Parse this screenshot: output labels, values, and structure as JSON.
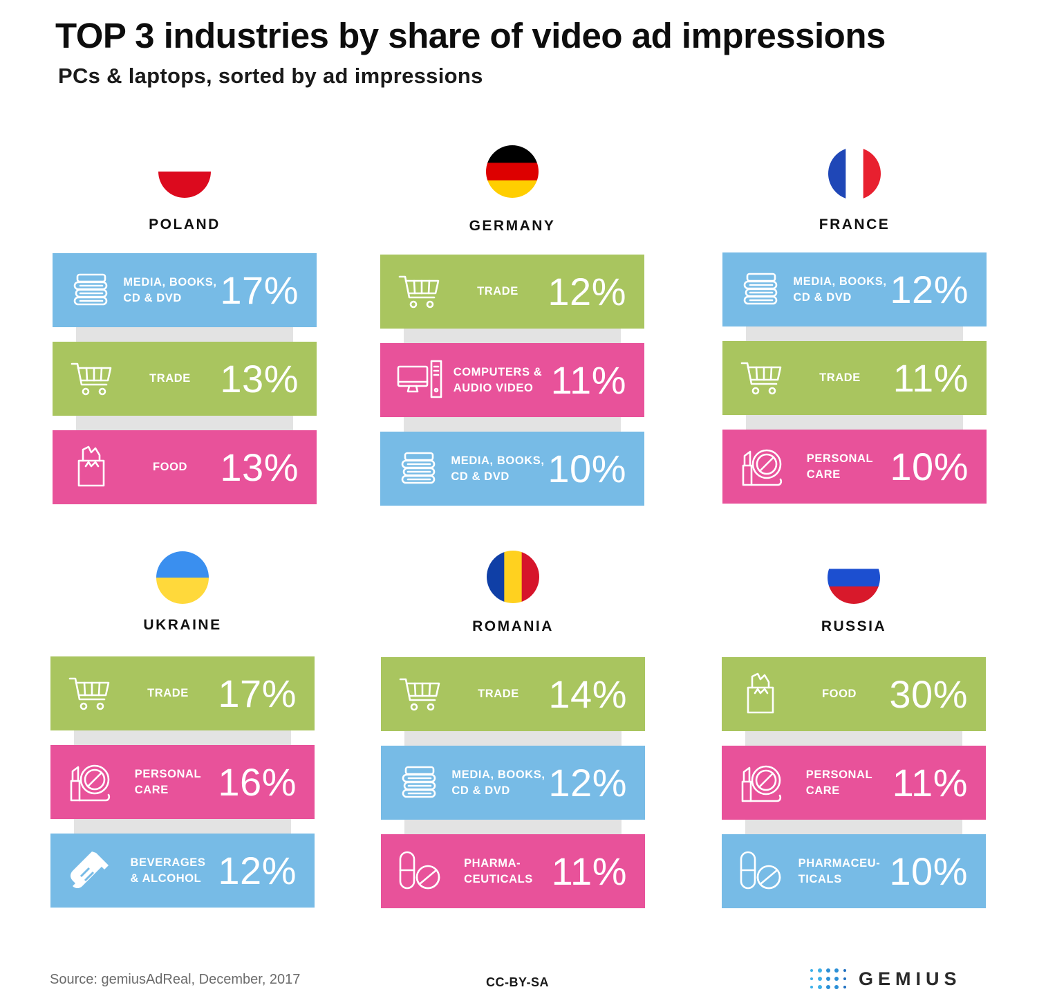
{
  "header": {
    "title": "TOP 3 industries by share of video ad impressions",
    "subtitle": "PCs & laptops, sorted by ad impressions"
  },
  "colors": {
    "blue": "#77bbe6",
    "green": "#a9c55f",
    "pink": "#e8529a",
    "spine": "#e3e3e3"
  },
  "chart_data": {
    "type": "table",
    "panels": [
      {
        "country": "POLAND",
        "flag": [
          "#ffffff",
          "#dc0a1e"
        ],
        "flag_orientation": "horizontal",
        "rows": [
          {
            "industry": "MEDIA, BOOKS,\nCD & DVD",
            "value": "17%",
            "value_num": 17,
            "color": "blue",
            "icon": "books-icon"
          },
          {
            "industry": "TRADE",
            "value": "13%",
            "value_num": 13,
            "color": "green",
            "icon": "shopping-cart-icon"
          },
          {
            "industry": "FOOD",
            "value": "13%",
            "value_num": 13,
            "color": "pink",
            "icon": "grocery-bag-icon"
          }
        ]
      },
      {
        "country": "GERMANY",
        "flag": [
          "#000000",
          "#dd0000",
          "#ffce00"
        ],
        "flag_orientation": "horizontal",
        "rows": [
          {
            "industry": "TRADE",
            "value": "12%",
            "value_num": 12,
            "color": "green",
            "icon": "shopping-cart-icon"
          },
          {
            "industry": "COMPUTERS &\nAUDIO VIDEO",
            "value": "11%",
            "value_num": 11,
            "color": "pink",
            "icon": "computer-icon"
          },
          {
            "industry": "MEDIA, BOOKS,\nCD & DVD",
            "value": "10%",
            "value_num": 10,
            "color": "blue",
            "icon": "books-icon"
          }
        ]
      },
      {
        "country": "FRANCE",
        "flag": [
          "#1f47b7",
          "#ffffff",
          "#e8202f"
        ],
        "flag_orientation": "vertical",
        "rows": [
          {
            "industry": "MEDIA, BOOKS,\nCD & DVD",
            "value": "12%",
            "value_num": 12,
            "color": "blue",
            "icon": "books-icon"
          },
          {
            "industry": "TRADE",
            "value": "11%",
            "value_num": 11,
            "color": "green",
            "icon": "shopping-cart-icon"
          },
          {
            "industry": "PERSONAL\nCARE",
            "value": "10%",
            "value_num": 10,
            "color": "pink",
            "icon": "cosmetics-icon"
          }
        ]
      },
      {
        "country": "UKRAINE",
        "flag": [
          "#3a8fef",
          "#ffd93b"
        ],
        "flag_orientation": "horizontal",
        "rows": [
          {
            "industry": "TRADE",
            "value": "17%",
            "value_num": 17,
            "color": "green",
            "icon": "shopping-cart-icon"
          },
          {
            "industry": "PERSONAL\nCARE",
            "value": "16%",
            "value_num": 16,
            "color": "pink",
            "icon": "cosmetics-icon"
          },
          {
            "industry": "BEVERAGES\n& ALCOHOL",
            "value": "12%",
            "value_num": 12,
            "color": "blue",
            "icon": "bottle-icon"
          }
        ]
      },
      {
        "country": "ROMANIA",
        "flag": [
          "#0f3fa6",
          "#ffd11f",
          "#d6142a"
        ],
        "flag_orientation": "vertical",
        "rows": [
          {
            "industry": "TRADE",
            "value": "14%",
            "value_num": 14,
            "color": "green",
            "icon": "shopping-cart-icon"
          },
          {
            "industry": "MEDIA, BOOKS,\nCD & DVD",
            "value": "12%",
            "value_num": 12,
            "color": "blue",
            "icon": "books-icon"
          },
          {
            "industry": "PHARMA-\nCEUTICALS",
            "value": "11%",
            "value_num": 11,
            "color": "pink",
            "icon": "pills-icon"
          }
        ]
      },
      {
        "country": "RUSSIA",
        "flag": [
          "#ffffff",
          "#1c4fd0",
          "#d8192b"
        ],
        "flag_orientation": "horizontal",
        "rows": [
          {
            "industry": "FOOD",
            "value": "30%",
            "value_num": 30,
            "color": "green",
            "icon": "grocery-bag-icon"
          },
          {
            "industry": "PERSONAL\nCARE",
            "value": "11%",
            "value_num": 11,
            "color": "pink",
            "icon": "cosmetics-icon"
          },
          {
            "industry": "PHARMACEU-\nTICALS",
            "value": "10%",
            "value_num": 10,
            "color": "blue",
            "icon": "pills-icon"
          }
        ]
      }
    ]
  },
  "footer": {
    "source": "Source: gemiusAdReal, December, 2017",
    "license": "CC-BY-SA",
    "logo": "GEMIUS"
  }
}
